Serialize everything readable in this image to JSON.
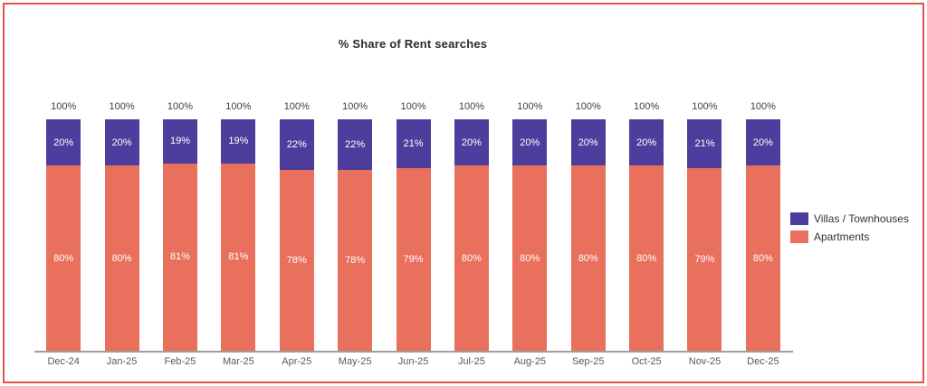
{
  "chart": {
    "title": "% Share of Rent searches"
  },
  "legend": [
    {
      "label": "Villas / Townhouses",
      "swatch": "villas-swatch"
    },
    {
      "label": "Apartments",
      "swatch": "apartments-swatch"
    }
  ],
  "chart_data": {
    "type": "bar",
    "stacked": true,
    "title": "% Share of Rent searches",
    "categories": [
      "Dec-24",
      "Jan-25",
      "Feb-25",
      "Mar-25",
      "Apr-25",
      "May-25",
      "Jun-25",
      "Jul-25",
      "Aug-25",
      "Sep-25",
      "Oct-25",
      "Nov-25",
      "Dec-25"
    ],
    "series": [
      {
        "name": "Apartments",
        "color": "#E8705C",
        "values": [
          80,
          80,
          81,
          81,
          78,
          78,
          79,
          80,
          80,
          80,
          80,
          79,
          80
        ]
      },
      {
        "name": "Villas / Townhouses",
        "color": "#4D3D9C",
        "values": [
          20,
          20,
          19,
          19,
          22,
          22,
          21,
          20,
          20,
          20,
          20,
          21,
          20
        ]
      }
    ],
    "total_labels": [
      "100%",
      "100%",
      "100%",
      "100%",
      "100%",
      "100%",
      "100%",
      "100%",
      "100%",
      "100%",
      "100%",
      "100%",
      "100%"
    ],
    "value_suffix": "%",
    "ylim": [
      0,
      100
    ],
    "grid": false,
    "legend_position": "right"
  },
  "colors": {
    "villas": "#4D3D9C",
    "apartments": "#E8705C",
    "frame_border": "#E0544B",
    "axis_line": "#9E9E9E",
    "total_label": "#404040",
    "category_label": "#595959"
  }
}
